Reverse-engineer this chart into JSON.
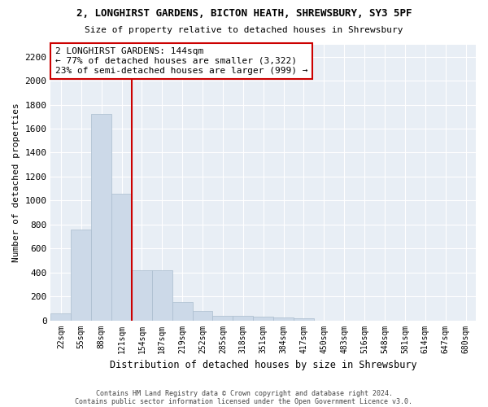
{
  "title": "2, LONGHIRST GARDENS, BICTON HEATH, SHREWSBURY, SY3 5PF",
  "subtitle": "Size of property relative to detached houses in Shrewsbury",
  "xlabel": "Distribution of detached houses by size in Shrewsbury",
  "ylabel": "Number of detached properties",
  "bar_color": "#ccd9e8",
  "bar_edge_color": "#aabdce",
  "plot_bg_color": "#e8eef5",
  "fig_bg_color": "#ffffff",
  "grid_color": "#ffffff",
  "categories": [
    "22sqm",
    "55sqm",
    "88sqm",
    "121sqm",
    "154sqm",
    "187sqm",
    "219sqm",
    "252sqm",
    "285sqm",
    "318sqm",
    "351sqm",
    "384sqm",
    "417sqm",
    "450sqm",
    "483sqm",
    "516sqm",
    "548sqm",
    "581sqm",
    "614sqm",
    "647sqm",
    "680sqm"
  ],
  "values": [
    55,
    760,
    1720,
    1060,
    420,
    420,
    150,
    80,
    40,
    40,
    30,
    25,
    20,
    0,
    0,
    0,
    0,
    0,
    0,
    0,
    0
  ],
  "ylim": [
    0,
    2300
  ],
  "yticks": [
    0,
    200,
    400,
    600,
    800,
    1000,
    1200,
    1400,
    1600,
    1800,
    2000,
    2200
  ],
  "annotation_text": "2 LONGHIRST GARDENS: 144sqm\n← 77% of detached houses are smaller (3,322)\n23% of semi-detached houses are larger (999) →",
  "annotation_box_color": "#ffffff",
  "annotation_box_edge_color": "#cc0000",
  "red_line_color": "#cc0000",
  "red_line_bin_index": 3.5,
  "footer1": "Contains HM Land Registry data © Crown copyright and database right 2024.",
  "footer2": "Contains public sector information licensed under the Open Government Licence v3.0."
}
